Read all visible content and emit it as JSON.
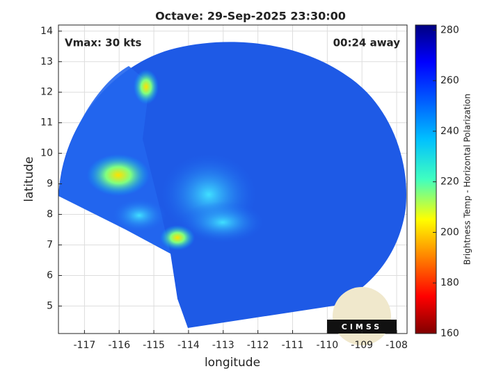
{
  "chart_data": {
    "type": "swath-map",
    "title": "Octave: 29-Sep-2025 23:30:00",
    "xlabel": "longitude",
    "ylabel": "latitude",
    "xlim": [
      -117.75,
      -107.7
    ],
    "xticks": [
      -117,
      -116,
      -115,
      -114,
      -113,
      -112,
      -111,
      -110,
      -109,
      -108
    ],
    "ylim": [
      4.1,
      14.2
    ],
    "yticks": [
      5,
      6,
      7,
      8,
      9,
      10,
      11,
      12,
      13,
      14
    ],
    "grid": true,
    "annotations": [
      "Vmax: 30 kts",
      "00:24 away"
    ],
    "colorbar": {
      "label": "Brightness Temp - Horizontal Polarization",
      "lim": [
        160,
        282
      ],
      "ticks": [
        160,
        180,
        200,
        220,
        240,
        260,
        280
      ],
      "colormap": "jet"
    },
    "logo": "CIMSS"
  }
}
